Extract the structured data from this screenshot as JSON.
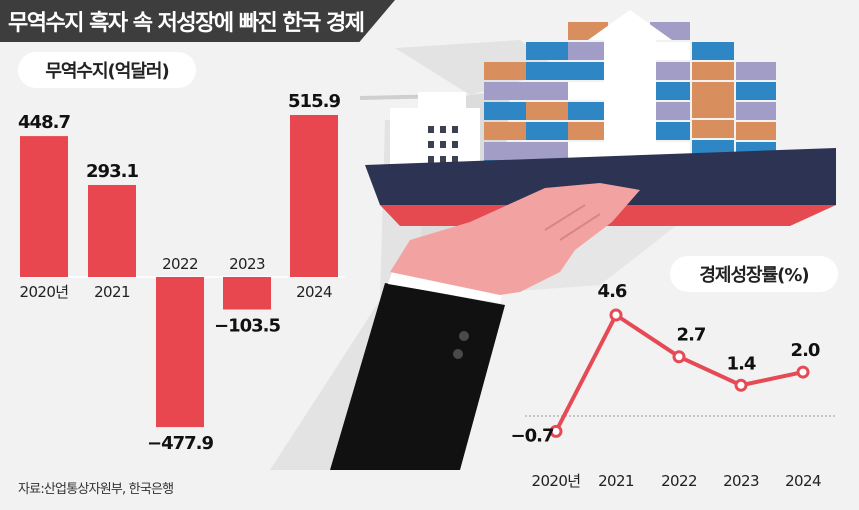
{
  "title": "무역수지 흑자 속 저성장에 빠진 한국 경제",
  "source": "자료:산업통상자원부, 한국은행",
  "colors": {
    "bar": "#e8474f",
    "line": "#e64a55",
    "header": "#3d3d3d"
  },
  "chart_data": [
    {
      "type": "bar",
      "title": "무역수지(억달러)",
      "categories": [
        "2020년",
        "2021",
        "2022",
        "2023",
        "2024"
      ],
      "values": [
        448.7,
        293.1,
        -477.9,
        -103.5,
        515.9
      ],
      "value_labels": [
        "448.7",
        "293.1",
        "−477.9",
        "−103.5",
        "515.9"
      ]
    },
    {
      "type": "line",
      "title": "경제성장률(%)",
      "categories": [
        "2020년",
        "2021",
        "2022",
        "2023",
        "2024"
      ],
      "values": [
        -0.7,
        4.6,
        2.7,
        1.4,
        2.0
      ],
      "value_labels": [
        "−0.7",
        "4.6",
        "2.7",
        "1.4",
        "2.0"
      ]
    }
  ]
}
